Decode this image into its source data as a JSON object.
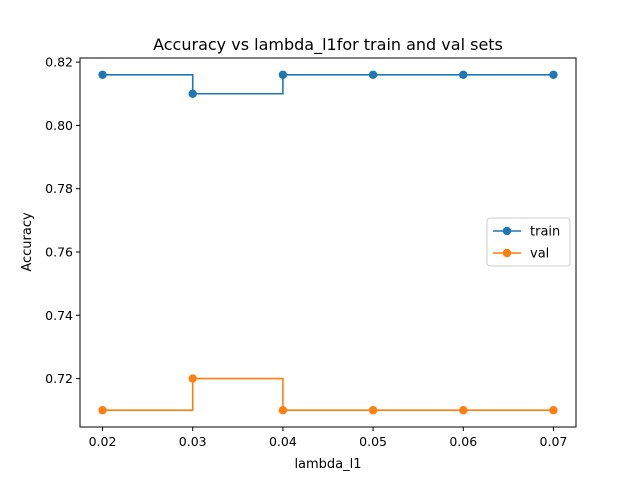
{
  "chart_data": {
    "type": "line",
    "title": "Accuracy vs lambda_l1for train and val sets",
    "xlabel": "lambda_l1",
    "ylabel": "Accuracy",
    "x": [
      0.02,
      0.03,
      0.04,
      0.05,
      0.06,
      0.07
    ],
    "x_tick_labels": [
      "0.02",
      "0.03",
      "0.04",
      "0.05",
      "0.06",
      "0.07"
    ],
    "y_ticks": [
      0.72,
      0.74,
      0.76,
      0.78,
      0.8,
      0.82
    ],
    "y_tick_labels": [
      "0.72",
      "0.74",
      "0.76",
      "0.78",
      "0.80",
      "0.82"
    ],
    "xlim": [
      0.0175,
      0.0725
    ],
    "ylim": [
      0.7047,
      0.8213
    ],
    "step": "post",
    "grid": false,
    "legend_position": "center-right",
    "series": [
      {
        "name": "train",
        "color": "#1f77b4",
        "values": [
          0.816,
          0.81,
          0.816,
          0.816,
          0.816,
          0.816
        ]
      },
      {
        "name": "val",
        "color": "#ff7f0e",
        "values": [
          0.71,
          0.72,
          0.71,
          0.71,
          0.71,
          0.71
        ]
      }
    ]
  }
}
